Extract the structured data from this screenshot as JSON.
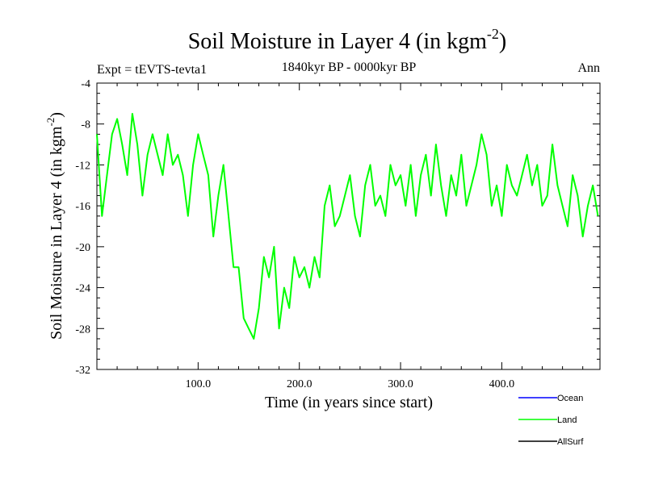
{
  "chart_data": {
    "type": "line",
    "title": "Soil Moisture in Layer 4 (in kgm",
    "title_sup": "-2",
    "title_close": ")",
    "subtitle": "1840kyr BP - 0000kyr BP",
    "expt_label": "Expt = tEVTS-tevta1",
    "season_label": "Ann",
    "xlabel": "Time (in years since start)",
    "ylabel": "Soil Moisture in Layer 4 (in kgm",
    "ylabel_sup": "-2",
    "ylabel_close": ")",
    "xlim": [
      0,
      497
    ],
    "ylim": [
      -32,
      -4
    ],
    "x_ticks": [
      100,
      200,
      300,
      400
    ],
    "x_tick_labels": [
      "100.0",
      "200.0",
      "300.0",
      "400.0"
    ],
    "y_ticks": [
      -4,
      -8,
      -12,
      -16,
      -20,
      -24,
      -28,
      -32
    ],
    "y_tick_labels": [
      "-4",
      "-8",
      "-12",
      "-16",
      "-20",
      "-24",
      "-28",
      "-32"
    ],
    "legend": [
      {
        "name": "Ocean",
        "color": "#0000ff"
      },
      {
        "name": "Land",
        "color": "#00ff00"
      },
      {
        "name": "AllSurf",
        "color": "#000000"
      }
    ],
    "series": [
      {
        "name": "Land",
        "color": "#00ff00",
        "x": [
          0,
          5,
          10,
          15,
          20,
          25,
          30,
          35,
          40,
          45,
          50,
          55,
          60,
          65,
          70,
          75,
          80,
          85,
          90,
          95,
          100,
          105,
          110,
          115,
          120,
          125,
          130,
          135,
          140,
          145,
          150,
          155,
          160,
          165,
          170,
          175,
          180,
          185,
          190,
          195,
          200,
          205,
          210,
          215,
          220,
          225,
          230,
          235,
          240,
          245,
          250,
          255,
          260,
          265,
          270,
          275,
          280,
          285,
          290,
          295,
          300,
          305,
          310,
          315,
          320,
          325,
          330,
          335,
          340,
          345,
          350,
          355,
          360,
          365,
          370,
          375,
          380,
          385,
          390,
          395,
          400,
          405,
          410,
          415,
          420,
          425,
          430,
          435,
          440,
          445,
          450,
          455,
          460,
          465,
          470,
          475,
          480,
          485,
          490,
          495
        ],
        "values": [
          -9,
          -17,
          -13,
          -9,
          -7.5,
          -10,
          -13,
          -7,
          -10,
          -15,
          -11,
          -9,
          -11,
          -13,
          -9,
          -12,
          -11,
          -13,
          -17,
          -12,
          -9,
          -11,
          -13,
          -19,
          -15,
          -12,
          -17,
          -22,
          -22,
          -27,
          -28,
          -29,
          -26,
          -21,
          -23,
          -20,
          -28,
          -24,
          -26,
          -21,
          -23,
          -22,
          -24,
          -21,
          -23,
          -16,
          -14,
          -18,
          -17,
          -15,
          -13,
          -17,
          -19,
          -14,
          -12,
          -16,
          -15,
          -17,
          -12,
          -14,
          -13,
          -16,
          -12,
          -17,
          -13,
          -11,
          -15,
          -10,
          -14,
          -17,
          -13,
          -15,
          -11,
          -16,
          -14,
          -12,
          -9,
          -11,
          -16,
          -14,
          -17,
          -12,
          -14,
          -15,
          -13,
          -11,
          -14,
          -12,
          -16,
          -15,
          -10,
          -14,
          -16,
          -18,
          -13,
          -15,
          -19,
          -16,
          -14,
          -17
        ]
      }
    ]
  }
}
